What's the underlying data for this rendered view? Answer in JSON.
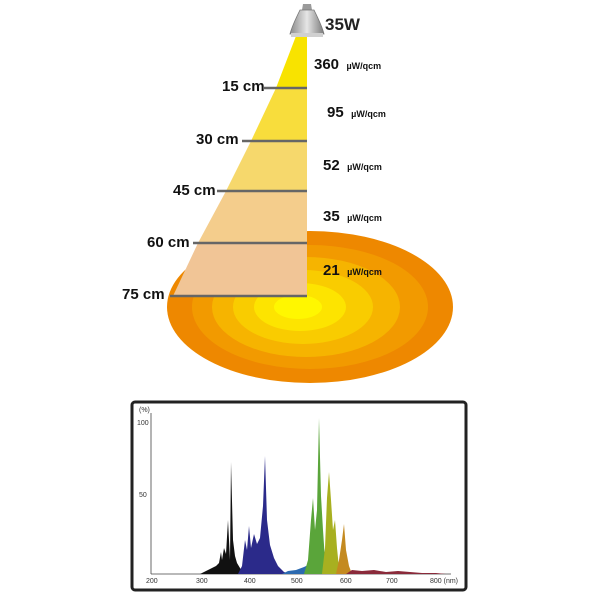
{
  "lamp": {
    "wattage": "35W"
  },
  "distances": [
    {
      "label": "15 cm",
      "value": "360",
      "unit": "µW/qcm"
    },
    {
      "label": "30 cm",
      "value": "95",
      "unit": "µW/qcm"
    },
    {
      "label": "45 cm",
      "value": "52",
      "unit": "µW/qcm"
    },
    {
      "label": "60 cm",
      "value": "35",
      "unit": "µW/qcm"
    },
    {
      "label": "75 cm",
      "value": "21",
      "unit": "µW/qcm"
    }
  ],
  "spectrum": {
    "y_unit": "(%)",
    "y_ticks": [
      "100",
      "50"
    ],
    "x_ticks": [
      "200",
      "300",
      "400",
      "500",
      "600",
      "700",
      "800 (nm)"
    ],
    "colors": {
      "panel_border": "#222222",
      "beam_top": "#f5e000",
      "beam_bottom": "#f0c890",
      "spot_outer": "#ee8a00",
      "spot_inner": "#fff400"
    }
  }
}
